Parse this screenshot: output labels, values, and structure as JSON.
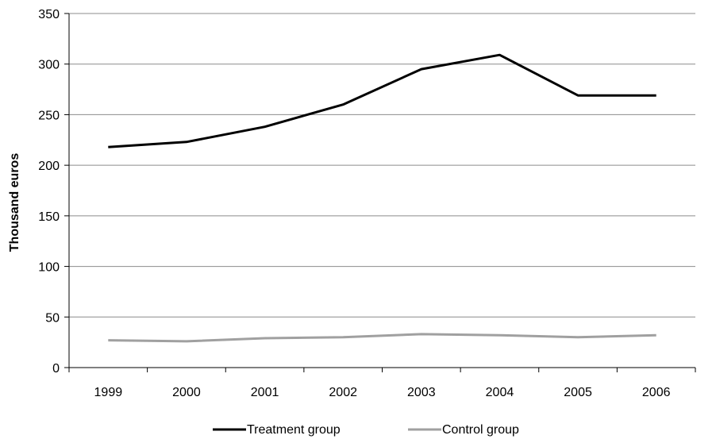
{
  "chart_data": {
    "type": "line",
    "title": "",
    "xlabel": "",
    "ylabel": "Thousand euros",
    "categories": [
      "1999",
      "2000",
      "2001",
      "2002",
      "2003",
      "2004",
      "2005",
      "2006"
    ],
    "ylim": [
      0,
      350
    ],
    "yticks": [
      0,
      50,
      100,
      150,
      200,
      250,
      300,
      350
    ],
    "grid": "horizontal",
    "legend_position": "bottom",
    "series": [
      {
        "name": "Treatment group",
        "color": "#000000",
        "values": [
          218,
          223,
          238,
          260,
          295,
          309,
          269,
          269
        ]
      },
      {
        "name": "Control group",
        "color": "#a0a0a0",
        "values": [
          27,
          26,
          29,
          30,
          33,
          32,
          30,
          32
        ]
      }
    ]
  }
}
